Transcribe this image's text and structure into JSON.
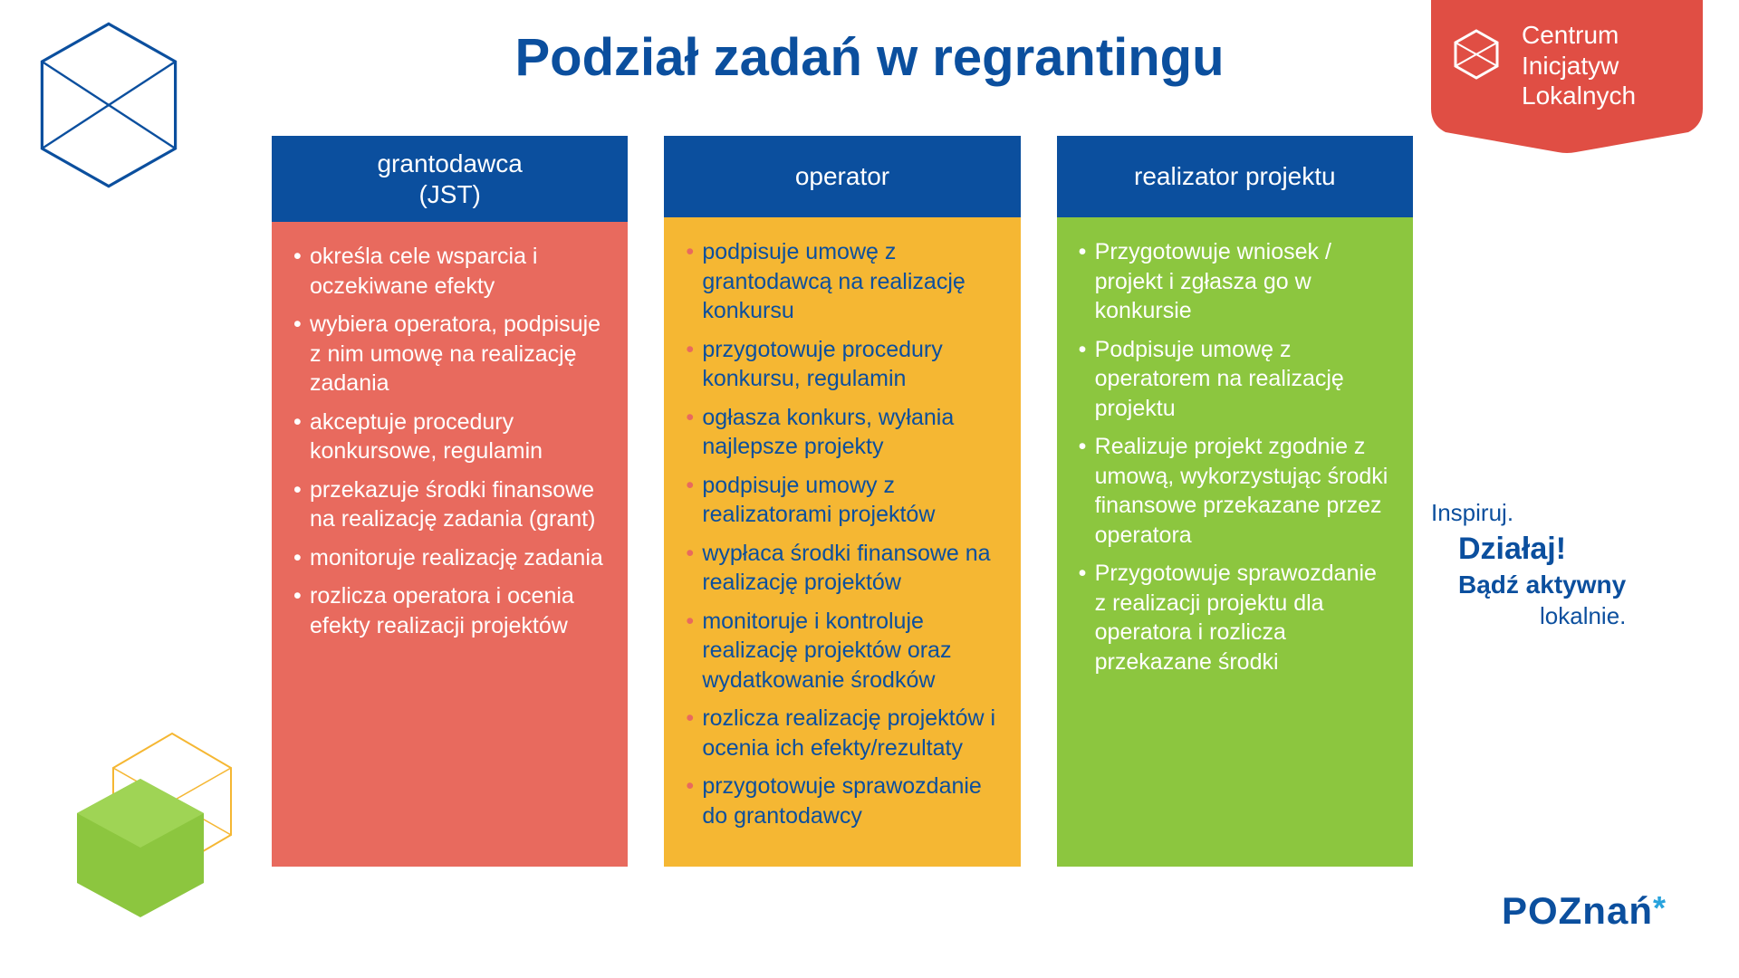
{
  "title": "Podział zadań w regrantingu",
  "colors": {
    "header_bg": "#0b4f9e",
    "header_text": "#ffffff",
    "title": "#0b4f9e"
  },
  "columns": [
    {
      "header": "grantodawca\n(JST)",
      "body_bg": "#e86a5e",
      "body_text": "#ffffff",
      "bullet_color": "#ffffff",
      "items": [
        "określa cele wsparcia i oczekiwane efekty",
        "wybiera operatora, podpisuje z nim umowę na realizację zadania",
        "akceptuje procedury konkursowe, regulamin",
        "przekazuje środki finansowe na realizację zadania (grant)",
        "monitoruje realizację zadania",
        "rozlicza operatora i ocenia efekty realizacji projektów"
      ]
    },
    {
      "header": "operator",
      "body_bg": "#f5b733",
      "body_text": "#0b4f9e",
      "bullet_color": "#e86a5e",
      "items": [
        "podpisuje umowę z grantodawcą na realizację konkursu",
        "przygotowuje procedury konkursu, regulamin",
        "ogłasza konkurs, wyłania najlepsze projekty",
        "podpisuje umowy z realizatorami projektów",
        "wypłaca środki finansowe na realizację projektów",
        "monitoruje i kontroluje realizację projektów oraz wydatkowanie środków",
        "rozlicza realizację projektów i ocenia ich efekty/rezultaty",
        "przygotowuje sprawozdanie do grantodawcy"
      ]
    },
    {
      "header": "realizator projektu",
      "body_bg": "#8cc63f",
      "body_text": "#ffffff",
      "bullet_color": "#ffffff",
      "items": [
        "Przygotowuje wniosek / projekt i zgłasza go w konkursie",
        "Podpisuje umowę z operatorem na realizację projektu",
        "Realizuje projekt zgodnie z umową, wykorzystując środki finansowe przekazane przez operatora",
        "Przygotowuje sprawozdanie z realizacji projektu dla operatora i rozlicza przekazane środki"
      ]
    }
  ],
  "badge": {
    "bg": "#e04e44",
    "text": "Centrum\nInicjatyw\nLokalnych",
    "icon_stroke": "#ffffff"
  },
  "slogan": {
    "l1": "Inspiruj.",
    "l2": "Działaj!",
    "l3": "Bądź aktywny",
    "l4": "lokalnie."
  },
  "poznan": {
    "text": "POZnań",
    "star": "*"
  },
  "decor": {
    "cube_blue_stroke": "#0b4f9e",
    "cube_green_fill": "#8cc63f",
    "cube_orange_stroke": "#f5b733"
  }
}
